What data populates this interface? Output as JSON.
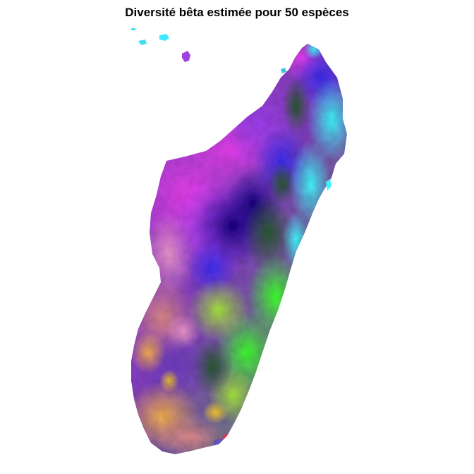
{
  "title": "Diversité bêta estimée pour 50 espèces",
  "map": {
    "region": "Madagascar",
    "rendering": "RGB composite raster",
    "colors": {
      "background": "#ffffff",
      "magenta": "#e040e8",
      "violet": "#a040f0",
      "indigo": "#2a0a9a",
      "blue": "#3030e0",
      "cyan": "#40f0ff",
      "green": "#40ff30",
      "yellow_green": "#a0f040",
      "dark_green": "#2e6a2e",
      "orange": "#f0b060",
      "salmon": "#e09090",
      "pink": "#f0a0c8",
      "red_tip": "#ff3060"
    }
  }
}
